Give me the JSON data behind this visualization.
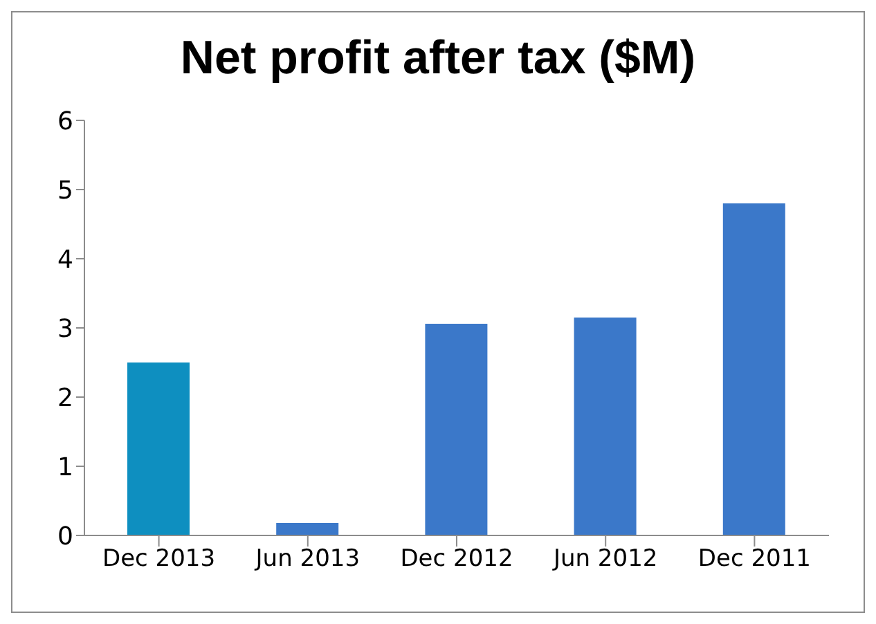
{
  "chart_data": {
    "type": "bar",
    "title": "Net profit after tax ($M)",
    "categories": [
      "Dec 2013",
      "Jun 2013",
      "Dec 2012",
      "Jun 2012",
      "Dec 2011"
    ],
    "values": [
      2.5,
      0.18,
      3.06,
      3.15,
      4.8
    ],
    "colors": [
      "#0e8fc0",
      "#3b78c9",
      "#3b78c9",
      "#3b78c9",
      "#3b78c9"
    ],
    "ylim": [
      0,
      6
    ],
    "yticks": [
      0,
      1,
      2,
      3,
      4,
      5,
      6
    ],
    "grid": false,
    "legend": false
  }
}
